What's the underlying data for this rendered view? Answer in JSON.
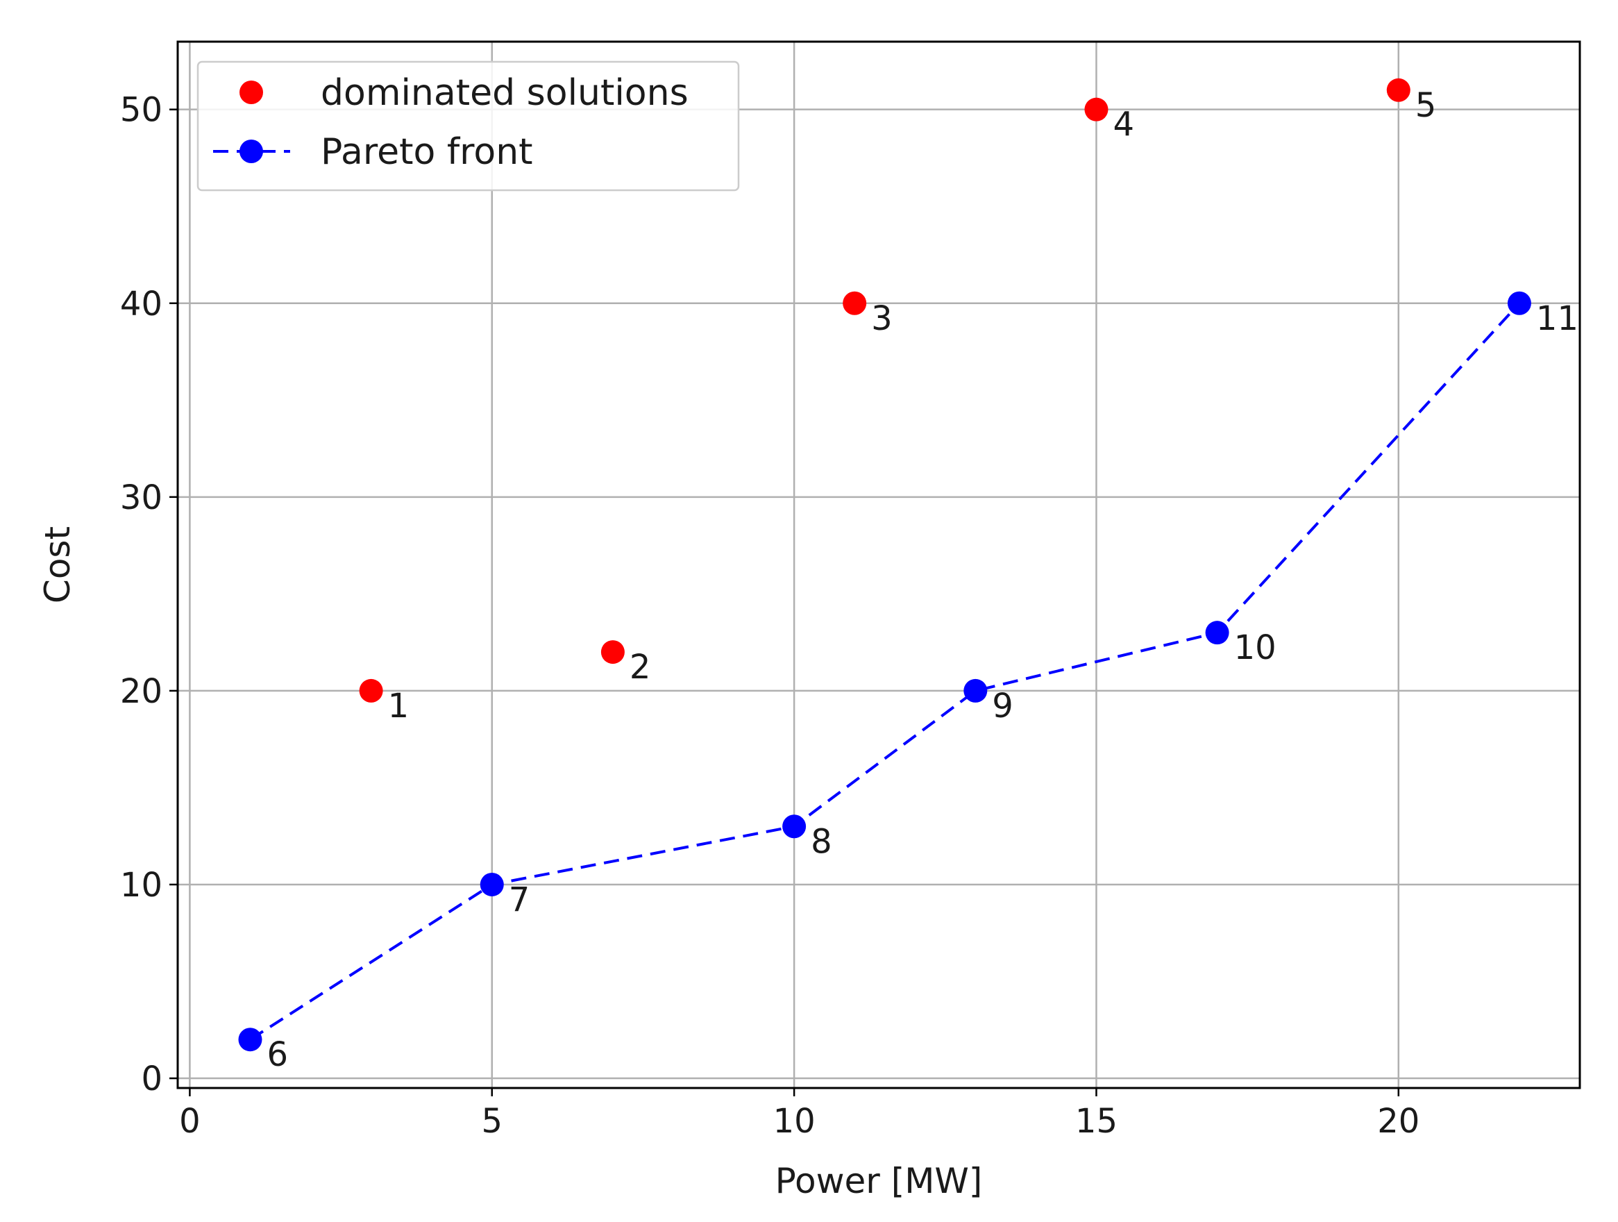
{
  "chart_data": {
    "type": "scatter",
    "title": "",
    "xlabel": "Power [MW]",
    "ylabel": "Cost",
    "xlim": [
      -0.2,
      23.0
    ],
    "ylim": [
      -0.5,
      53.5
    ],
    "xticks": [
      0,
      5,
      10,
      15,
      20
    ],
    "yticks": [
      0,
      10,
      20,
      30,
      40,
      50
    ],
    "grid": true,
    "legend_position": "top-left",
    "series": [
      {
        "name": "dominated solutions",
        "color": "#ff0000",
        "style": "markers",
        "points": [
          {
            "label": "1",
            "x": 3,
            "y": 20
          },
          {
            "label": "2",
            "x": 7,
            "y": 22
          },
          {
            "label": "3",
            "x": 11,
            "y": 40
          },
          {
            "label": "4",
            "x": 15,
            "y": 50
          },
          {
            "label": "5",
            "x": 20,
            "y": 51
          }
        ]
      },
      {
        "name": "Pareto front",
        "color": "#0000ff",
        "style": "dashed-line-markers",
        "points": [
          {
            "label": "6",
            "x": 1,
            "y": 2
          },
          {
            "label": "7",
            "x": 5,
            "y": 10
          },
          {
            "label": "8",
            "x": 10,
            "y": 13
          },
          {
            "label": "9",
            "x": 13,
            "y": 20
          },
          {
            "label": "10",
            "x": 17,
            "y": 23
          },
          {
            "label": "11",
            "x": 22,
            "y": 40
          }
        ]
      }
    ]
  }
}
